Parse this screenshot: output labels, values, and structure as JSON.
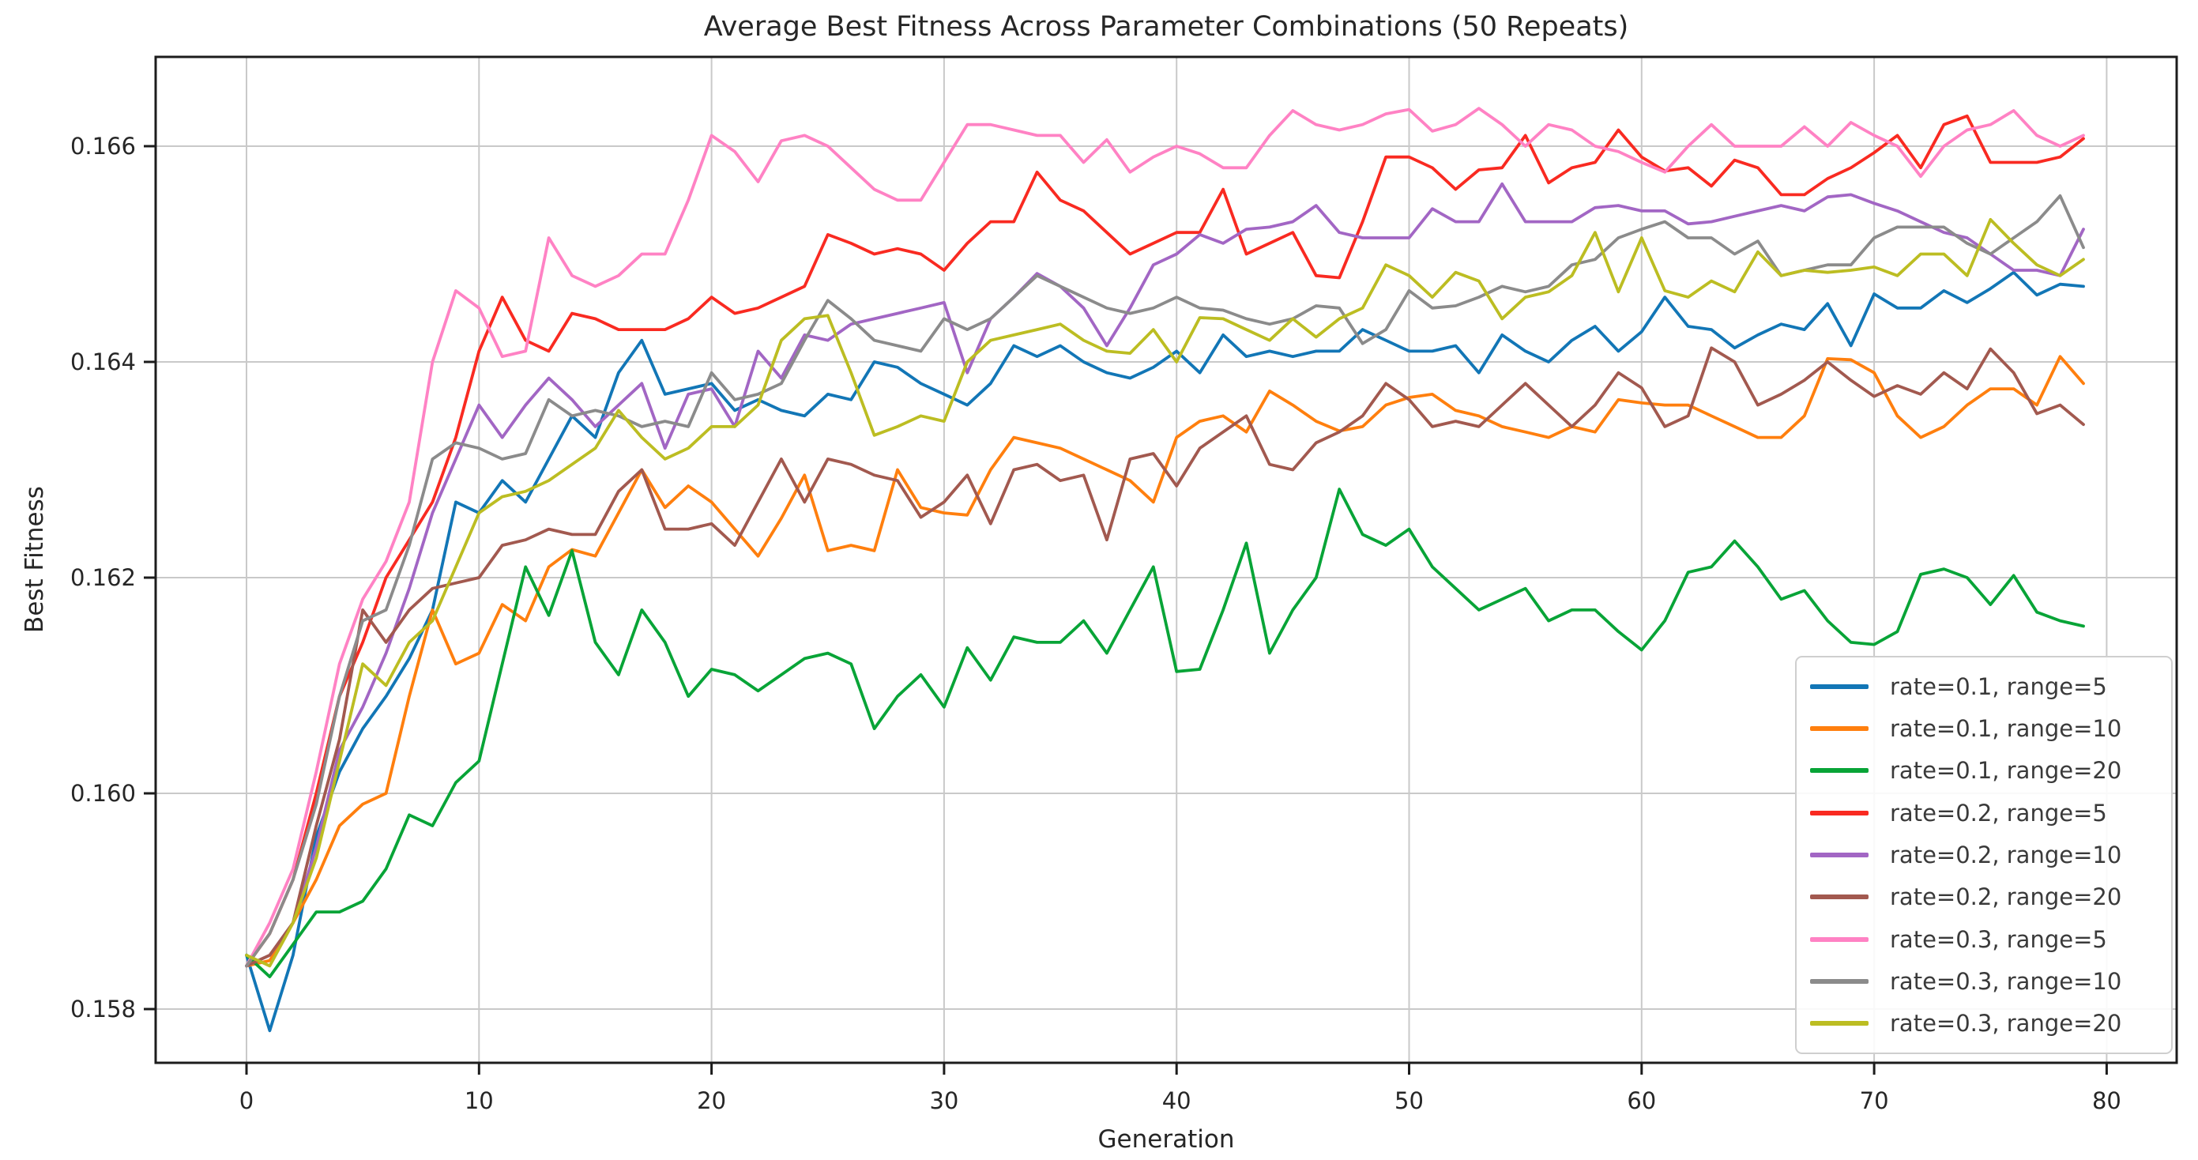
{
  "figure": {
    "title": "Average Best Fitness Across Parameter Combinations (50 Repeats)",
    "xlabel": "Generation",
    "ylabel": "Best Fitness",
    "background_color": "#ffffff",
    "text_color": "#262626",
    "grid_color": "#c9c9c9",
    "spine_color": "#1c1c1c",
    "legend": {
      "position": "lower right",
      "border_color": "#cfcfcf",
      "background_color": "#ffffff"
    }
  },
  "chart_data": {
    "type": "line",
    "title": "Average Best Fitness Across Parameter Combinations (50 Repeats)",
    "xlabel": "Generation",
    "ylabel": "Best Fitness",
    "grid": true,
    "legend_position": "lower right",
    "xlim": [
      -3.9,
      83.0
    ],
    "ylim": [
      0.1575,
      0.1668
    ],
    "x_ticks": [
      0,
      10,
      20,
      30,
      40,
      50,
      60,
      70,
      80
    ],
    "y_ticks": [
      0.158,
      0.16,
      0.162,
      0.164,
      0.166
    ],
    "y_tick_labels": [
      "0.158",
      "0.160",
      "0.162",
      "0.164",
      "0.166"
    ],
    "x": [
      0,
      1,
      2,
      3,
      4,
      5,
      6,
      7,
      8,
      9,
      10,
      11,
      12,
      13,
      14,
      15,
      16,
      17,
      18,
      19,
      20,
      21,
      22,
      23,
      24,
      25,
      26,
      27,
      28,
      29,
      30,
      31,
      32,
      33,
      34,
      35,
      36,
      37,
      38,
      39,
      40,
      41,
      42,
      43,
      44,
      45,
      46,
      47,
      48,
      49,
      50,
      51,
      52,
      53,
      54,
      55,
      56,
      57,
      58,
      59,
      60,
      61,
      62,
      63,
      64,
      65,
      66,
      67,
      68,
      69,
      70,
      71,
      72,
      73,
      74,
      75,
      76,
      77,
      78,
      79
    ],
    "series": [
      {
        "name": "rate=0.1, range=5",
        "color": "#1276b6",
        "values": [
          0.1585,
          0.1578,
          0.1585,
          0.1596,
          0.1602,
          0.1606,
          0.1609,
          0.16125,
          0.1617,
          0.1627,
          0.1626,
          0.1629,
          0.1627,
          0.1631,
          0.1635,
          0.1633,
          0.1639,
          0.1642,
          0.1637,
          0.16375,
          0.1638,
          0.16355,
          0.16365,
          0.16355,
          0.1635,
          0.1637,
          0.16365,
          0.164,
          0.16395,
          0.1638,
          0.1637,
          0.1636,
          0.1638,
          0.16415,
          0.16405,
          0.16415,
          0.164,
          0.1639,
          0.16385,
          0.16395,
          0.1641,
          0.1639,
          0.16425,
          0.16405,
          0.1641,
          0.16405,
          0.1641,
          0.1641,
          0.1643,
          0.1642,
          0.1641,
          0.1641,
          0.16415,
          0.1639,
          0.16425,
          0.1641,
          0.164,
          0.1642,
          0.16433,
          0.1641,
          0.16428,
          0.1646,
          0.16433,
          0.1643,
          0.16413,
          0.16425,
          0.16435,
          0.1643,
          0.16454,
          0.16415,
          0.16463,
          0.1645,
          0.1645,
          0.16466,
          0.16455,
          0.16468,
          0.16483,
          0.16462,
          0.16472,
          0.1647
        ]
      },
      {
        "name": "rate=0.1, range=10",
        "color": "#ff7f0e",
        "values": [
          0.1584,
          0.15845,
          0.1588,
          0.1592,
          0.1597,
          0.1599,
          0.16,
          0.1609,
          0.1617,
          0.1612,
          0.1613,
          0.16175,
          0.1616,
          0.1621,
          0.16226,
          0.1622,
          0.1626,
          0.163,
          0.16265,
          0.16285,
          0.1627,
          0.16245,
          0.1622,
          0.16255,
          0.16295,
          0.16225,
          0.1623,
          0.16225,
          0.163,
          0.16265,
          0.1626,
          0.16258,
          0.163,
          0.1633,
          0.16325,
          0.1632,
          0.1631,
          0.163,
          0.1629,
          0.1627,
          0.1633,
          0.16345,
          0.1635,
          0.16335,
          0.16373,
          0.1636,
          0.16345,
          0.16336,
          0.1634,
          0.1636,
          0.16367,
          0.1637,
          0.16355,
          0.1635,
          0.1634,
          0.16335,
          0.1633,
          0.1634,
          0.16335,
          0.16365,
          0.16362,
          0.1636,
          0.1636,
          0.1635,
          0.1634,
          0.1633,
          0.1633,
          0.1635,
          0.16403,
          0.16402,
          0.1639,
          0.1635,
          0.1633,
          0.1634,
          0.1636,
          0.16375,
          0.16375,
          0.1636,
          0.16405,
          0.1638
        ]
      },
      {
        "name": "rate=0.1, range=20",
        "color": "#08a437",
        "values": [
          0.1585,
          0.1583,
          0.1586,
          0.1589,
          0.1589,
          0.159,
          0.1593,
          0.1598,
          0.1597,
          0.1601,
          0.1603,
          0.1612,
          0.1621,
          0.16165,
          0.16225,
          0.1614,
          0.1611,
          0.1617,
          0.1614,
          0.1609,
          0.16115,
          0.1611,
          0.16095,
          0.1611,
          0.16125,
          0.1613,
          0.1612,
          0.1606,
          0.1609,
          0.1611,
          0.1608,
          0.16135,
          0.16105,
          0.16145,
          0.1614,
          0.1614,
          0.1616,
          0.1613,
          0.1617,
          0.1621,
          0.16113,
          0.16115,
          0.1617,
          0.16232,
          0.1613,
          0.1617,
          0.162,
          0.16282,
          0.1624,
          0.1623,
          0.16245,
          0.1621,
          0.1619,
          0.1617,
          0.1618,
          0.1619,
          0.1616,
          0.1617,
          0.1617,
          0.1615,
          0.16133,
          0.1616,
          0.16205,
          0.1621,
          0.16234,
          0.1621,
          0.1618,
          0.16188,
          0.1616,
          0.1614,
          0.16138,
          0.1615,
          0.16203,
          0.16208,
          0.162,
          0.16175,
          0.16202,
          0.16168,
          0.1616,
          0.16155
        ]
      },
      {
        "name": "rate=0.2, range=5",
        "color": "#f92a21",
        "values": [
          0.1584,
          0.1587,
          0.1592,
          0.16,
          0.1609,
          0.1614,
          0.162,
          0.16235,
          0.1627,
          0.1633,
          0.1641,
          0.1646,
          0.1642,
          0.1641,
          0.16445,
          0.1644,
          0.1643,
          0.1643,
          0.1643,
          0.1644,
          0.1646,
          0.16445,
          0.1645,
          0.1646,
          0.1647,
          0.16518,
          0.1651,
          0.165,
          0.16505,
          0.165,
          0.16485,
          0.1651,
          0.1653,
          0.1653,
          0.16576,
          0.1655,
          0.1654,
          0.1652,
          0.165,
          0.1651,
          0.1652,
          0.1652,
          0.1656,
          0.165,
          0.1651,
          0.1652,
          0.1648,
          0.16478,
          0.1653,
          0.1659,
          0.1659,
          0.1658,
          0.1656,
          0.16578,
          0.1658,
          0.1661,
          0.16566,
          0.1658,
          0.16585,
          0.16615,
          0.1659,
          0.16577,
          0.1658,
          0.16563,
          0.16587,
          0.1658,
          0.16555,
          0.16555,
          0.1657,
          0.1658,
          0.16594,
          0.1661,
          0.1658,
          0.1662,
          0.16628,
          0.16585,
          0.16585,
          0.16585,
          0.1659,
          0.16607
        ]
      },
      {
        "name": "rate=0.2, range=10",
        "color": "#a266c4",
        "values": [
          0.1584,
          0.1585,
          0.1588,
          0.1595,
          0.1604,
          0.1608,
          0.1613,
          0.1619,
          0.1626,
          0.1631,
          0.1636,
          0.1633,
          0.1636,
          0.16385,
          0.16365,
          0.1634,
          0.1636,
          0.1638,
          0.1632,
          0.1637,
          0.16375,
          0.1634,
          0.1641,
          0.16385,
          0.16425,
          0.1642,
          0.16435,
          0.1644,
          0.16445,
          0.1645,
          0.16455,
          0.1639,
          0.1644,
          0.1646,
          0.16482,
          0.1647,
          0.1645,
          0.16415,
          0.1645,
          0.1649,
          0.165,
          0.16518,
          0.1651,
          0.16523,
          0.16525,
          0.1653,
          0.16545,
          0.1652,
          0.16515,
          0.16515,
          0.16515,
          0.16542,
          0.1653,
          0.1653,
          0.16565,
          0.1653,
          0.1653,
          0.1653,
          0.16543,
          0.16545,
          0.1654,
          0.1654,
          0.16528,
          0.1653,
          0.16535,
          0.1654,
          0.16545,
          0.1654,
          0.16553,
          0.16555,
          0.16547,
          0.1654,
          0.1653,
          0.1652,
          0.16515,
          0.165,
          0.16485,
          0.16485,
          0.1648,
          0.16523
        ]
      },
      {
        "name": "rate=0.2, range=20",
        "color": "#a2594f",
        "values": [
          0.1584,
          0.1585,
          0.1588,
          0.1597,
          0.1605,
          0.1617,
          0.1614,
          0.1617,
          0.1619,
          0.16195,
          0.162,
          0.1623,
          0.16235,
          0.16245,
          0.1624,
          0.1624,
          0.1628,
          0.163,
          0.16245,
          0.16245,
          0.1625,
          0.1623,
          0.1627,
          0.1631,
          0.1627,
          0.1631,
          0.16305,
          0.16295,
          0.1629,
          0.16256,
          0.1627,
          0.16295,
          0.1625,
          0.163,
          0.16305,
          0.1629,
          0.16295,
          0.16235,
          0.1631,
          0.16315,
          0.16285,
          0.1632,
          0.16335,
          0.1635,
          0.16305,
          0.163,
          0.16325,
          0.16335,
          0.1635,
          0.1638,
          0.16365,
          0.1634,
          0.16345,
          0.1634,
          0.1636,
          0.1638,
          0.1636,
          0.1634,
          0.1636,
          0.1639,
          0.16376,
          0.1634,
          0.1635,
          0.16413,
          0.164,
          0.1636,
          0.1637,
          0.16383,
          0.164,
          0.16383,
          0.16368,
          0.16378,
          0.1637,
          0.1639,
          0.16375,
          0.16412,
          0.1639,
          0.16352,
          0.1636,
          0.16342
        ]
      },
      {
        "name": "rate=0.3, range=5",
        "color": "#ff82c4",
        "values": [
          0.1584,
          0.1588,
          0.1593,
          0.1602,
          0.1612,
          0.1618,
          0.16215,
          0.1627,
          0.164,
          0.16466,
          0.1645,
          0.16405,
          0.1641,
          0.16515,
          0.1648,
          0.1647,
          0.1648,
          0.165,
          0.165,
          0.1655,
          0.1661,
          0.16595,
          0.16567,
          0.16605,
          0.1661,
          0.166,
          0.1658,
          0.1656,
          0.1655,
          0.1655,
          0.16585,
          0.1662,
          0.1662,
          0.16615,
          0.1661,
          0.1661,
          0.16585,
          0.16606,
          0.16576,
          0.1659,
          0.166,
          0.16593,
          0.1658,
          0.1658,
          0.1661,
          0.16633,
          0.1662,
          0.16615,
          0.1662,
          0.1663,
          0.16634,
          0.16614,
          0.1662,
          0.16635,
          0.1662,
          0.166,
          0.1662,
          0.16615,
          0.166,
          0.16595,
          0.16585,
          0.16576,
          0.166,
          0.1662,
          0.166,
          0.166,
          0.166,
          0.16618,
          0.166,
          0.16622,
          0.1661,
          0.166,
          0.16572,
          0.166,
          0.16615,
          0.1662,
          0.16633,
          0.1661,
          0.166,
          0.1661
        ]
      },
      {
        "name": "rate=0.3, range=10",
        "color": "#8b8b8b",
        "values": [
          0.1584,
          0.1587,
          0.1592,
          0.1599,
          0.1609,
          0.1616,
          0.1617,
          0.1623,
          0.1631,
          0.16325,
          0.1632,
          0.1631,
          0.16315,
          0.16365,
          0.1635,
          0.16355,
          0.1635,
          0.1634,
          0.16345,
          0.1634,
          0.1639,
          0.16365,
          0.1637,
          0.1638,
          0.1642,
          0.16457,
          0.1644,
          0.1642,
          0.16415,
          0.1641,
          0.1644,
          0.1643,
          0.1644,
          0.1646,
          0.1648,
          0.1647,
          0.1646,
          0.1645,
          0.16445,
          0.1645,
          0.1646,
          0.1645,
          0.16448,
          0.1644,
          0.16435,
          0.1644,
          0.16452,
          0.1645,
          0.16417,
          0.1643,
          0.16466,
          0.1645,
          0.16452,
          0.1646,
          0.1647,
          0.16465,
          0.1647,
          0.1649,
          0.16495,
          0.16515,
          0.16523,
          0.1653,
          0.16515,
          0.16515,
          0.165,
          0.16512,
          0.1648,
          0.16485,
          0.1649,
          0.1649,
          0.16515,
          0.16525,
          0.16525,
          0.16525,
          0.1651,
          0.165,
          0.16515,
          0.1653,
          0.16554,
          0.16506
        ]
      },
      {
        "name": "rate=0.3, range=20",
        "color": "#bcbd22",
        "values": [
          0.1585,
          0.1584,
          0.1588,
          0.1594,
          0.1603,
          0.1612,
          0.161,
          0.1614,
          0.1616,
          0.1621,
          0.1626,
          0.16275,
          0.1628,
          0.1629,
          0.16305,
          0.1632,
          0.16355,
          0.1633,
          0.1631,
          0.1632,
          0.1634,
          0.1634,
          0.1636,
          0.1642,
          0.1644,
          0.16443,
          0.1639,
          0.16332,
          0.1634,
          0.1635,
          0.16345,
          0.164,
          0.1642,
          0.16425,
          0.1643,
          0.16435,
          0.1642,
          0.1641,
          0.16408,
          0.1643,
          0.164,
          0.16441,
          0.1644,
          0.1643,
          0.1642,
          0.1644,
          0.16423,
          0.1644,
          0.1645,
          0.1649,
          0.1648,
          0.1646,
          0.16483,
          0.16475,
          0.1644,
          0.1646,
          0.16465,
          0.1648,
          0.1652,
          0.16465,
          0.16515,
          0.16466,
          0.1646,
          0.16475,
          0.16465,
          0.16502,
          0.1648,
          0.16485,
          0.16483,
          0.16485,
          0.16488,
          0.1648,
          0.165,
          0.165,
          0.1648,
          0.16532,
          0.1651,
          0.1649,
          0.1648,
          0.16495
        ]
      }
    ]
  }
}
